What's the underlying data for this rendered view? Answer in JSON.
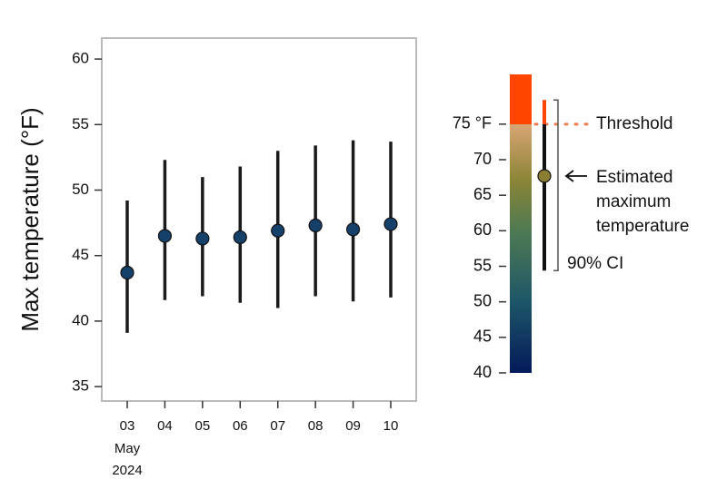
{
  "chart_data": [
    {
      "type": "pointrange",
      "y_label": "Max temperature (°F)",
      "categories": [
        "03",
        "04",
        "05",
        "06",
        "07",
        "08",
        "09",
        "10"
      ],
      "x_period_label": [
        "May",
        "2024"
      ],
      "values": [
        43.7,
        46.5,
        46.3,
        46.4,
        46.9,
        47.3,
        47.0,
        47.4
      ],
      "lower": [
        39.1,
        41.6,
        41.9,
        41.4,
        41.0,
        41.9,
        41.5,
        41.8
      ],
      "upper": [
        49.2,
        52.3,
        51.0,
        51.8,
        53.0,
        53.4,
        53.8,
        53.7
      ],
      "color": "#15406a",
      "ylim": [
        33.9,
        61.6
      ],
      "yticks": [
        35,
        40,
        45,
        50,
        55,
        60
      ]
    },
    {
      "type": "colorbar",
      "ylim": [
        40,
        82
      ],
      "yticks": [
        40,
        45,
        50,
        55,
        60,
        65,
        70,
        {
          "value": 75,
          "label": "75 °F"
        }
      ],
      "color_scale": [
        {
          "value": 40,
          "color": "#041a5a"
        },
        {
          "value": 50,
          "color": "#1d5668"
        },
        {
          "value": 60,
          "color": "#4e7a52"
        },
        {
          "value": 67,
          "color": "#8a8436"
        },
        {
          "value": 75,
          "color": "#d9a575"
        },
        {
          "value": 75,
          "color": "#ff4500"
        },
        {
          "value": 82,
          "color": "#ff4500"
        }
      ],
      "threshold": 75,
      "threshold_label": "Threshold",
      "threshold_color": "#f07a4a",
      "estimate": 67.7,
      "estimate_color": "#8b7d32",
      "ci": [
        54.4,
        78.4
      ],
      "estimate_label": [
        "Estimated",
        "maximum",
        "temperature"
      ],
      "ci_label": "90% CI"
    }
  ]
}
